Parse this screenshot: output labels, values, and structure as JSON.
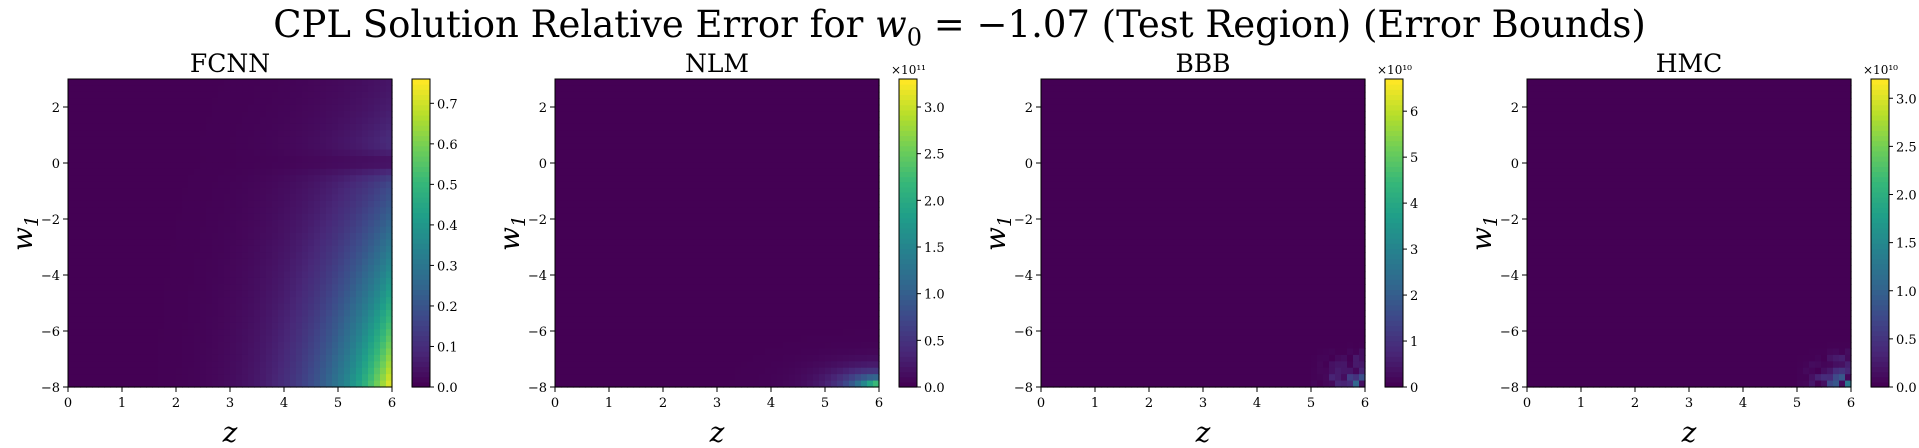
{
  "figure": {
    "title_prefix": "CPL Solution Relative Error for ",
    "title_var": "w",
    "title_sub": "0",
    "title_value": " = −1.07 (Test Region) (Error Bounds)"
  },
  "colormap": {
    "name": "viridis",
    "stops": [
      "#440154",
      "#482878",
      "#3e4989",
      "#31688e",
      "#26828e",
      "#1f9e89",
      "#35b779",
      "#6ece58",
      "#b5de2b",
      "#fde725"
    ]
  },
  "chart_data": [
    {
      "type": "heatmap",
      "title": "FCNN",
      "xlabel": "z",
      "ylabel": "w1",
      "xlim": [
        0,
        6
      ],
      "ylim": [
        -8,
        3
      ],
      "xticks": [
        0,
        1,
        2,
        3,
        4,
        5,
        6
      ],
      "yticks": [
        -8,
        -6,
        -4,
        -2,
        0,
        2
      ],
      "colorbar": {
        "min": 0,
        "max": 0.76,
        "ticks": [
          "0.0",
          "0.1",
          "0.2",
          "0.3",
          "0.4",
          "0.5",
          "0.6",
          "0.7"
        ],
        "tick_values": [
          0,
          0.1,
          0.2,
          0.3,
          0.4,
          0.5,
          0.6,
          0.7
        ],
        "offset_label": ""
      },
      "field": "smooth"
    },
    {
      "type": "heatmap",
      "title": "NLM",
      "xlabel": "z",
      "ylabel": "w1",
      "xlim": [
        0,
        6
      ],
      "ylim": [
        -8,
        3
      ],
      "xticks": [
        0,
        1,
        2,
        3,
        4,
        5,
        6
      ],
      "yticks": [
        -8,
        -6,
        -4,
        -2,
        0,
        2
      ],
      "colorbar": {
        "min": 0,
        "max": 3.3,
        "ticks": [
          "0.0",
          "0.5",
          "1.0",
          "1.5",
          "2.0",
          "2.5",
          "3.0"
        ],
        "tick_values": [
          0,
          0.5,
          1.0,
          1.5,
          2.0,
          2.5,
          3.0
        ],
        "offset_label": "×10¹¹"
      },
      "field": "corner"
    },
    {
      "type": "heatmap",
      "title": "BBB",
      "xlabel": "z",
      "ylabel": "w1",
      "xlim": [
        0,
        6
      ],
      "ylim": [
        -8,
        3
      ],
      "xticks": [
        0,
        1,
        2,
        3,
        4,
        5,
        6
      ],
      "yticks": [
        -8,
        -6,
        -4,
        -2,
        0,
        2
      ],
      "colorbar": {
        "min": 0,
        "max": 6.7,
        "ticks": [
          "0",
          "1",
          "2",
          "3",
          "4",
          "5",
          "6"
        ],
        "tick_values": [
          0,
          1,
          2,
          3,
          4,
          5,
          6
        ],
        "offset_label": "×10¹⁰"
      },
      "field": "speckle"
    },
    {
      "type": "heatmap",
      "title": "HMC",
      "xlabel": "z",
      "ylabel": "w1",
      "xlim": [
        0,
        6
      ],
      "ylim": [
        -8,
        3
      ],
      "xticks": [
        0,
        1,
        2,
        3,
        4,
        5,
        6
      ],
      "yticks": [
        -8,
        -6,
        -4,
        -2,
        0,
        2
      ],
      "colorbar": {
        "min": 0,
        "max": 3.2,
        "ticks": [
          "0.0",
          "0.5",
          "1.0",
          "1.5",
          "2.0",
          "2.5",
          "3.0"
        ],
        "tick_values": [
          0,
          0.5,
          1.0,
          1.5,
          2.0,
          2.5,
          3.0
        ],
        "offset_label": "×10¹⁰"
      },
      "field": "speckle2"
    }
  ]
}
